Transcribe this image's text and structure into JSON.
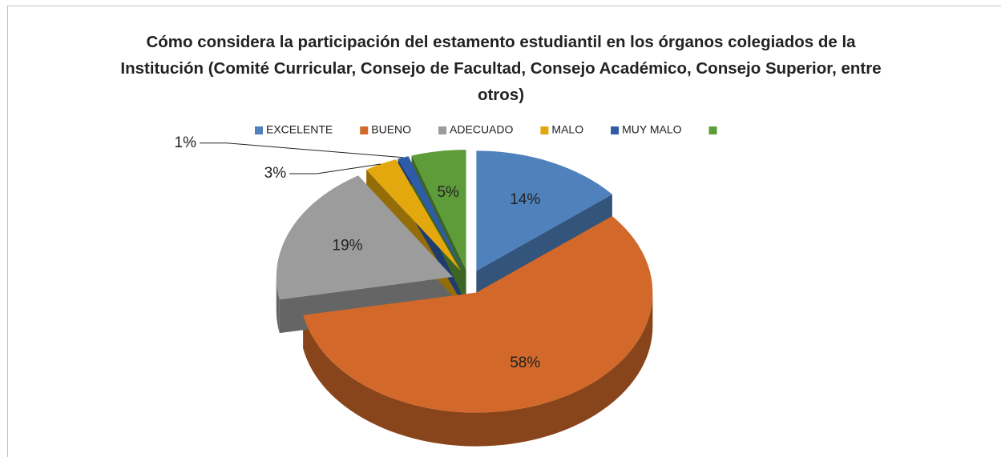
{
  "chart_data": {
    "type": "pie",
    "title": "Cómo considera la participación del estamento estudiantil en los órganos colegiados de la Institución (Comité Curricular, Consejo de Facultad, Consejo Académico, Consejo Superior, entre otros)",
    "categories": [
      "EXCELENTE",
      "BUENO",
      "ADECUADO",
      "MALO",
      "MUY MALO",
      null
    ],
    "values": [
      14,
      58,
      19,
      3,
      1,
      5
    ],
    "value_labels": [
      "14%",
      "58%",
      "19%",
      "3%",
      "1%",
      "5%"
    ],
    "colors": [
      "#4f81bd",
      "#d2692a",
      "#9c9c9c",
      "#e3a80e",
      "#2e5ca8",
      "#5e9c3a"
    ],
    "legend": "top"
  }
}
